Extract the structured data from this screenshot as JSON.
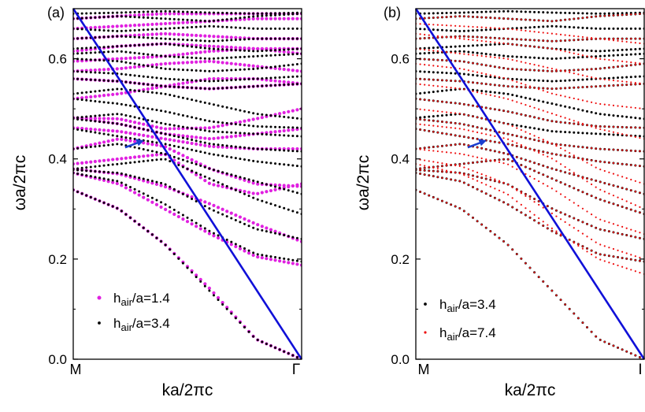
{
  "chart_data": [
    {
      "type": "scatter",
      "panel_label": "(a)",
      "xlabel": "ka/2πc",
      "ylabel": "ωa/2πc",
      "x_tick_labels": [
        "M",
        "Γ"
      ],
      "xlim": [
        0,
        1
      ],
      "ylim": [
        0,
        0.7
      ],
      "y_ticks": [
        0.0,
        0.2,
        0.4,
        0.6
      ],
      "y_tick_labels": [
        "0.0",
        "0.2",
        "0.4",
        "0.6"
      ],
      "grid": false,
      "legend_position": "bottom-left",
      "light_line": {
        "color": "#1010d8",
        "points": [
          [
            0,
            0.7
          ],
          [
            1,
            0.0
          ]
        ]
      },
      "annotation": {
        "type": "arrow",
        "color": "#1a3fd0",
        "tip": [
          0.31,
          0.437
        ]
      },
      "series": [
        {
          "name": "h_air/a=1.4",
          "legend_main": "h",
          "legend_sub": "air",
          "legend_rest": "/a=1.4",
          "color": "#e020e0",
          "marker_size": 4.2,
          "bands": [
            [
              0.338,
              0.3,
              0.23,
              0.14,
              0.04,
              0.0
            ],
            [
              0.372,
              0.35,
              0.3,
              0.25,
              0.205,
              0.188
            ],
            [
              0.38,
              0.37,
              0.345,
              0.31,
              0.27,
              0.235
            ],
            [
              0.39,
              0.4,
              0.41,
              0.35,
              0.33,
              0.35
            ],
            [
              0.42,
              0.44,
              0.425,
              0.38,
              0.35,
              0.345
            ],
            [
              0.462,
              0.455,
              0.44,
              0.425,
              0.42,
              0.42
            ],
            [
              0.482,
              0.47,
              0.45,
              0.44,
              0.45,
              0.46
            ],
            [
              0.482,
              0.48,
              0.46,
              0.462,
              0.48,
              0.5
            ],
            [
              0.52,
              0.53,
              0.545,
              0.56,
              0.56,
              0.55
            ],
            [
              0.56,
              0.555,
              0.545,
              0.54,
              0.545,
              0.55
            ],
            [
              0.575,
              0.58,
              0.59,
              0.595,
              0.585,
              0.575
            ],
            [
              0.595,
              0.6,
              0.605,
              0.615,
              0.62,
              0.62
            ],
            [
              0.615,
              0.625,
              0.63,
              0.625,
              0.62,
              0.61
            ],
            [
              0.64,
              0.645,
              0.65,
              0.645,
              0.64,
              0.64
            ],
            [
              0.66,
              0.665,
              0.67,
              0.675,
              0.68,
              0.68
            ],
            [
              0.68,
              0.685,
              0.69,
              0.69,
              0.69,
              0.69
            ]
          ]
        },
        {
          "name": "h_air/a=3.4",
          "legend_main": "h",
          "legend_sub": "air",
          "legend_rest": "/a=3.4",
          "color": "#000000",
          "marker_size": 3.0,
          "bands": [
            [
              0.338,
              0.3,
              0.23,
              0.135,
              0.04,
              0.0
            ],
            [
              0.372,
              0.355,
              0.31,
              0.255,
              0.21,
              0.195
            ],
            [
              0.378,
              0.372,
              0.35,
              0.3,
              0.26,
              0.24
            ],
            [
              0.38,
              0.39,
              0.4,
              0.36,
              0.32,
              0.29
            ],
            [
              0.42,
              0.43,
              0.41,
              0.38,
              0.355,
              0.33
            ],
            [
              0.46,
              0.445,
              0.43,
              0.41,
              0.395,
              0.385
            ],
            [
              0.48,
              0.47,
              0.45,
              0.43,
              0.42,
              0.415
            ],
            [
              0.482,
              0.49,
              0.47,
              0.455,
              0.45,
              0.445
            ],
            [
              0.52,
              0.51,
              0.495,
              0.475,
              0.465,
              0.462
            ],
            [
              0.53,
              0.54,
              0.53,
              0.51,
              0.49,
              0.48
            ],
            [
              0.56,
              0.555,
              0.545,
              0.54,
              0.545,
              0.55
            ],
            [
              0.575,
              0.57,
              0.56,
              0.555,
              0.56,
              0.565
            ],
            [
              0.6,
              0.595,
              0.58,
              0.575,
              0.58,
              0.59
            ],
            [
              0.61,
              0.615,
              0.605,
              0.6,
              0.605,
              0.61
            ],
            [
              0.62,
              0.625,
              0.63,
              0.62,
              0.615,
              0.62
            ],
            [
              0.64,
              0.645,
              0.64,
              0.635,
              0.64,
              0.64
            ],
            [
              0.66,
              0.655,
              0.66,
              0.665,
              0.66,
              0.66
            ],
            [
              0.68,
              0.685,
              0.68,
              0.675,
              0.685,
              0.69
            ],
            [
              0.69,
              0.692,
              0.695,
              0.692,
              0.69,
              0.692
            ]
          ]
        }
      ]
    },
    {
      "type": "scatter",
      "panel_label": "(b)",
      "xlabel": "ka/2πc",
      "ylabel": "ωa/2πc",
      "x_tick_labels": [
        "M",
        "I"
      ],
      "xlim": [
        0,
        1
      ],
      "ylim": [
        0,
        0.7
      ],
      "y_ticks": [
        0.0,
        0.2,
        0.4,
        0.6
      ],
      "y_tick_labels": [
        "0.0",
        "0.2",
        "0.4",
        "0.6"
      ],
      "grid": false,
      "legend_position": "bottom-left",
      "light_line": {
        "color": "#1010d8",
        "points": [
          [
            0,
            0.7
          ],
          [
            1,
            0.0
          ]
        ]
      },
      "annotation": {
        "type": "arrow",
        "color": "#1a3fd0",
        "tip": [
          0.31,
          0.437
        ]
      },
      "series": [
        {
          "name": "h_air/a=3.4",
          "legend_main": "h",
          "legend_sub": "air",
          "legend_rest": "/a=3.4",
          "color": "#000000",
          "marker_size": 3.0,
          "bands": [
            [
              0.338,
              0.3,
              0.23,
              0.135,
              0.04,
              0.0
            ],
            [
              0.372,
              0.355,
              0.31,
              0.255,
              0.21,
              0.195
            ],
            [
              0.378,
              0.372,
              0.35,
              0.3,
              0.26,
              0.24
            ],
            [
              0.38,
              0.39,
              0.4,
              0.36,
              0.32,
              0.29
            ],
            [
              0.42,
              0.43,
              0.41,
              0.38,
              0.355,
              0.33
            ],
            [
              0.46,
              0.445,
              0.43,
              0.41,
              0.395,
              0.385
            ],
            [
              0.48,
              0.47,
              0.45,
              0.43,
              0.42,
              0.415
            ],
            [
              0.482,
              0.49,
              0.47,
              0.455,
              0.45,
              0.445
            ],
            [
              0.52,
              0.51,
              0.495,
              0.475,
              0.465,
              0.462
            ],
            [
              0.53,
              0.54,
              0.53,
              0.51,
              0.49,
              0.48
            ],
            [
              0.56,
              0.555,
              0.545,
              0.54,
              0.545,
              0.55
            ],
            [
              0.575,
              0.57,
              0.56,
              0.555,
              0.56,
              0.565
            ],
            [
              0.6,
              0.595,
              0.58,
              0.575,
              0.58,
              0.59
            ],
            [
              0.61,
              0.615,
              0.605,
              0.6,
              0.605,
              0.61
            ],
            [
              0.62,
              0.625,
              0.63,
              0.62,
              0.615,
              0.62
            ],
            [
              0.64,
              0.645,
              0.64,
              0.635,
              0.64,
              0.64
            ],
            [
              0.66,
              0.655,
              0.66,
              0.665,
              0.66,
              0.66
            ],
            [
              0.68,
              0.685,
              0.68,
              0.675,
              0.685,
              0.69
            ],
            [
              0.69,
              0.692,
              0.695,
              0.692,
              0.69,
              0.692
            ]
          ]
        },
        {
          "name": "h_air/a=7.4",
          "legend_main": "h",
          "legend_sub": "air",
          "legend_rest": "/a=7.4",
          "color": "#ee1111",
          "marker_size": 2.2,
          "bands": [
            [
              0.338,
              0.3,
              0.23,
              0.135,
              0.04,
              0.0
            ],
            [
              0.372,
              0.355,
              0.31,
              0.255,
              0.21,
              0.195
            ],
            [
              0.378,
              0.372,
              0.35,
              0.3,
              0.26,
              0.24
            ],
            [
              0.38,
              0.39,
              0.4,
              0.36,
              0.32,
              0.29
            ],
            [
              0.42,
              0.43,
              0.41,
              0.38,
              0.355,
              0.33
            ],
            [
              0.46,
              0.445,
              0.43,
              0.41,
              0.395,
              0.385
            ],
            [
              0.48,
              0.47,
              0.45,
              0.43,
              0.42,
              0.415
            ],
            [
              0.52,
              0.51,
              0.495,
              0.475,
              0.465,
              0.462
            ],
            [
              0.56,
              0.555,
              0.545,
              0.54,
              0.545,
              0.55
            ],
            [
              0.6,
              0.595,
              0.58,
              0.575,
              0.58,
              0.59
            ],
            [
              0.64,
              0.645,
              0.64,
              0.635,
              0.64,
              0.64
            ],
            [
              0.68,
              0.685,
              0.68,
              0.675,
              0.685,
              0.69
            ],
            [
              0.39,
              0.37,
              0.33,
              0.26,
              0.2,
              0.17
            ],
            [
              0.4,
              0.385,
              0.35,
              0.29,
              0.23,
              0.2
            ],
            [
              0.42,
              0.41,
              0.39,
              0.34,
              0.28,
              0.25
            ],
            [
              0.47,
              0.46,
              0.44,
              0.4,
              0.34,
              0.3
            ],
            [
              0.5,
              0.49,
              0.47,
              0.43,
              0.38,
              0.35
            ],
            [
              0.55,
              0.54,
              0.52,
              0.49,
              0.46,
              0.44
            ],
            [
              0.59,
              0.58,
              0.56,
              0.53,
              0.51,
              0.5
            ],
            [
              0.62,
              0.61,
              0.6,
              0.58,
              0.56,
              0.55
            ],
            [
              0.65,
              0.64,
              0.63,
              0.62,
              0.6,
              0.59
            ],
            [
              0.67,
              0.665,
              0.66,
              0.65,
              0.64,
              0.63
            ]
          ]
        }
      ]
    }
  ]
}
